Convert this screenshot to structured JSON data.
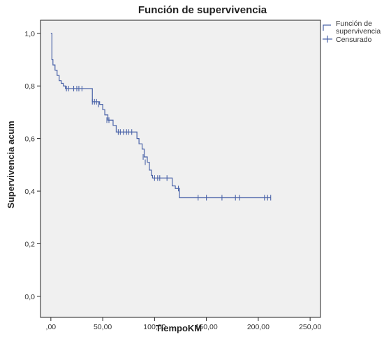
{
  "chart_data": {
    "type": "line",
    "title": "Función de supervivencia",
    "xlabel": "TiempoKM",
    "ylabel": "Supervivencia acum",
    "xlim": [
      -10,
      260
    ],
    "ylim": [
      -0.08,
      1.05
    ],
    "x_ticks": [
      0,
      50,
      100,
      150,
      200,
      250
    ],
    "x_tick_labels": [
      ",00",
      "50,00",
      "100,00",
      "150,00",
      "200,00",
      "250,00"
    ],
    "y_ticks": [
      0,
      0.2,
      0.4,
      0.6,
      0.8,
      1.0
    ],
    "y_tick_labels": [
      "0,0",
      "0,2",
      "0,4",
      "0,6",
      "0,8",
      "1,0"
    ],
    "grid": false,
    "legend_position": "top-right",
    "colors": {
      "line": "#4a63a8",
      "plot_bg": "#f0f0f0",
      "frame": "#222222"
    },
    "series": [
      {
        "name": "Función de supervivencia",
        "kind": "step",
        "x": [
          0,
          1,
          2,
          4,
          6,
          8,
          10,
          12,
          14,
          17,
          40,
          47,
          50,
          52,
          55,
          60,
          63,
          80,
          83,
          85,
          88,
          90,
          93,
          95,
          97,
          98,
          112,
          117,
          120,
          124,
          212
        ],
        "y": [
          1.0,
          0.9,
          0.88,
          0.86,
          0.84,
          0.82,
          0.81,
          0.8,
          0.79,
          0.79,
          0.74,
          0.73,
          0.71,
          0.69,
          0.67,
          0.65,
          0.625,
          0.625,
          0.6,
          0.58,
          0.56,
          0.53,
          0.51,
          0.48,
          0.46,
          0.45,
          0.45,
          0.42,
          0.41,
          0.375,
          0.375
        ]
      },
      {
        "name": "Censurado",
        "kind": "censor-marks",
        "x": [
          15,
          17,
          22,
          25,
          27,
          30,
          40,
          42,
          44,
          46,
          54,
          56,
          65,
          67,
          70,
          73,
          75,
          78,
          89,
          91,
          100,
          103,
          105,
          112,
          123,
          142,
          150,
          165,
          178,
          182,
          206,
          209,
          212
        ],
        "y": [
          0.79,
          0.79,
          0.79,
          0.79,
          0.79,
          0.79,
          0.74,
          0.74,
          0.74,
          0.73,
          0.67,
          0.67,
          0.625,
          0.625,
          0.625,
          0.625,
          0.625,
          0.625,
          0.53,
          0.51,
          0.45,
          0.45,
          0.45,
          0.45,
          0.41,
          0.375,
          0.375,
          0.375,
          0.375,
          0.375,
          0.375,
          0.375,
          0.375
        ]
      }
    ]
  }
}
